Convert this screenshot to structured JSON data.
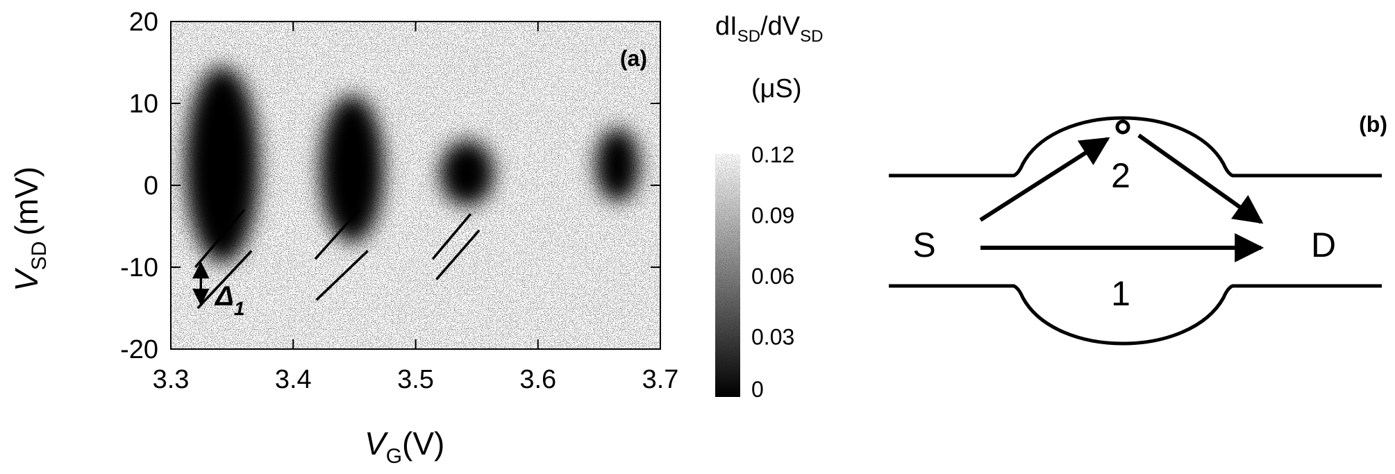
{
  "chart_data": [
    {
      "type": "heatmap",
      "panel_label": "(a)",
      "xlabel": {
        "main": "V",
        "sub": "G",
        "unit": "(V)"
      },
      "ylabel": {
        "main": "V",
        "sub": "SD",
        "unit": "(mV)"
      },
      "xlim": [
        3.3,
        3.7
      ],
      "ylim": [
        -20,
        20
      ],
      "x_ticks": [
        3.3,
        3.4,
        3.5,
        3.6,
        3.7
      ],
      "x_tick_labels": [
        "3.3",
        "3.4",
        "3.5",
        "3.6",
        "3.7"
      ],
      "y_ticks": [
        -20,
        -10,
        0,
        10,
        20
      ],
      "y_tick_labels": [
        "-20",
        "-10",
        "0",
        "10",
        "20"
      ],
      "colorbar": {
        "title_line1": {
          "a": "dI",
          "a_sub": "SD",
          "b": "/dV",
          "b_sub": "SD"
        },
        "title_line2": "(μS)",
        "range": [
          0,
          0.12
        ],
        "ticks": [
          0,
          0.03,
          0.06,
          0.09,
          0.12
        ],
        "tick_labels": [
          "0",
          "0.03",
          "0.06",
          "0.09",
          "0.12"
        ],
        "colormap": "gray (black = 0, white = 0.12)"
      },
      "blockade_regions": [
        {
          "x_center": 3.342,
          "y_center": 2.5,
          "x_halfwidth": 0.03,
          "y_halfwidth": 12
        },
        {
          "x_center": 3.448,
          "y_center": 2.0,
          "x_halfwidth": 0.026,
          "y_halfwidth": 9
        },
        {
          "x_center": 3.542,
          "y_center": 1.5,
          "x_halfwidth": 0.022,
          "y_halfwidth": 4
        },
        {
          "x_center": 3.665,
          "y_center": 2.5,
          "x_halfwidth": 0.018,
          "y_halfwidth": 4.5
        }
      ],
      "excited_state_lines": [
        {
          "x1": 3.32,
          "y1": -10.0,
          "x2": 3.36,
          "y2": -3.0
        },
        {
          "x1": 3.322,
          "y1": -15.0,
          "x2": 3.366,
          "y2": -8.0
        },
        {
          "x1": 3.418,
          "y1": -9.0,
          "x2": 3.454,
          "y2": -3.0
        },
        {
          "x1": 3.419,
          "y1": -14.0,
          "x2": 3.461,
          "y2": -8.0
        },
        {
          "x1": 3.514,
          "y1": -9.0,
          "x2": 3.545,
          "y2": -3.5
        },
        {
          "x1": 3.517,
          "y1": -11.5,
          "x2": 3.552,
          "y2": -5.5
        }
      ],
      "annotation": {
        "text": "Δ",
        "sub": "1",
        "arrow_x": 3.32,
        "arrow_y_from": -9.0,
        "arrow_y_to": -15.0
      }
    }
  ],
  "diagram": {
    "panel_label": "(b)",
    "source_label": "S",
    "drain_label": "D",
    "path_1_label": "1",
    "path_2_label": "2"
  }
}
